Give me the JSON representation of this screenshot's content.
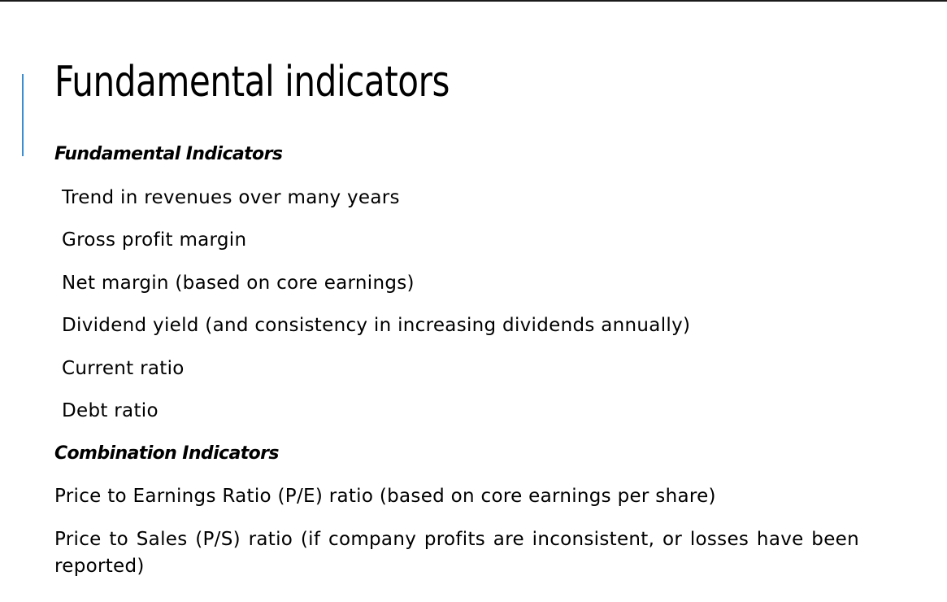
{
  "slide": {
    "title": "Fundamental indicators",
    "sections": [
      {
        "heading": "Fundamental Indicators",
        "items": [
          "Trend in revenues over many years",
          "Gross profit margin",
          "Net margin (based on core earnings)",
          "Dividend yield (and consistency in increasing dividends annually)",
          "Current ratio",
          "Debt ratio"
        ]
      },
      {
        "heading": "Combination Indicators",
        "items": [
          "Price to Earnings Ratio (P/E) ratio (based on core earnings per share)",
          "Price to Sales (P/S) ratio (if company profits are inconsistent, or losses have been reported)"
        ]
      }
    ]
  },
  "colors": {
    "accent": "#3b8fd1",
    "text": "#000000",
    "top_border": "#1a1a1a",
    "background": "#ffffff"
  }
}
